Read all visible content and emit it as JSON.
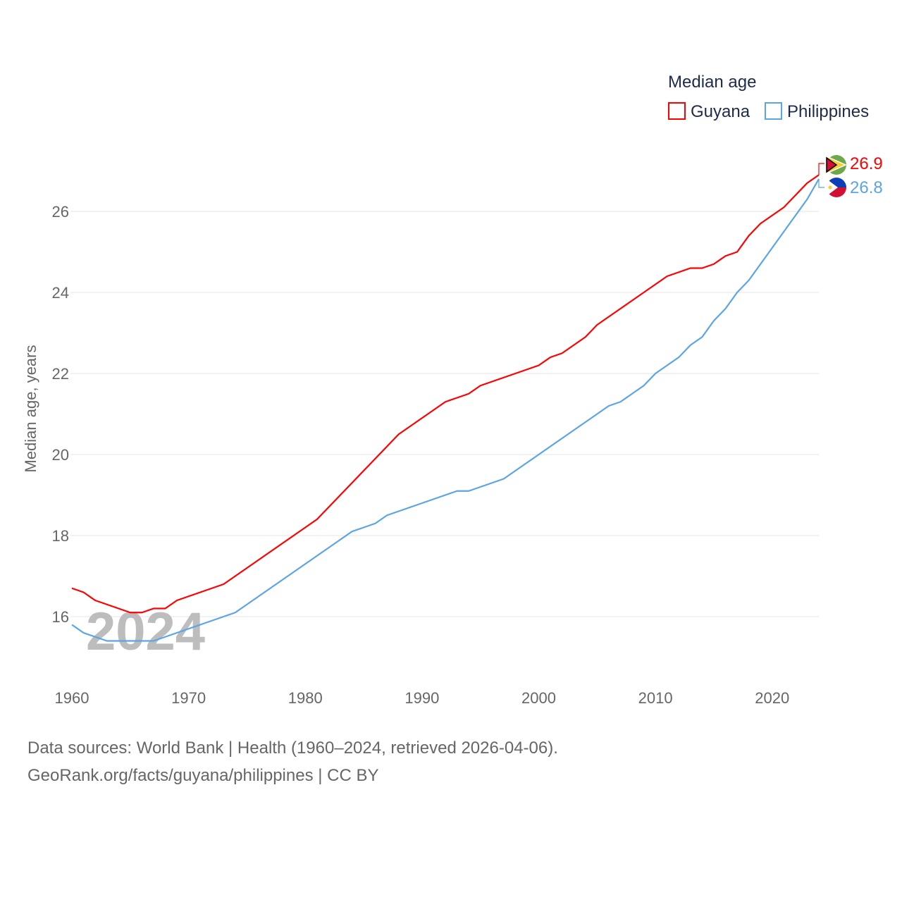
{
  "chart_data": {
    "type": "line",
    "title": "Median age",
    "xlabel": "",
    "ylabel": "Median age, years",
    "xlim": [
      1960,
      2024
    ],
    "ylim": [
      15,
      27
    ],
    "yticks": [
      16,
      18,
      20,
      22,
      24,
      26
    ],
    "xticks": [
      1960,
      1970,
      1980,
      1990,
      2000,
      2010,
      2020
    ],
    "grid": true,
    "legend_placement": "top-right",
    "watermark_year": "2024",
    "x": [
      1960,
      1961,
      1962,
      1963,
      1964,
      1965,
      1966,
      1967,
      1968,
      1969,
      1970,
      1971,
      1972,
      1973,
      1974,
      1975,
      1976,
      1977,
      1978,
      1979,
      1980,
      1981,
      1982,
      1983,
      1984,
      1985,
      1986,
      1987,
      1988,
      1989,
      1990,
      1991,
      1992,
      1993,
      1994,
      1995,
      1996,
      1997,
      1998,
      1999,
      2000,
      2001,
      2002,
      2003,
      2004,
      2005,
      2006,
      2007,
      2008,
      2009,
      2010,
      2011,
      2012,
      2013,
      2014,
      2015,
      2016,
      2017,
      2018,
      2019,
      2020,
      2021,
      2022,
      2023,
      2024
    ],
    "series": [
      {
        "name": "Guyana",
        "color": "#ff0000",
        "end_label": "26.9",
        "values": [
          16.7,
          16.6,
          16.4,
          16.3,
          16.2,
          16.1,
          16.1,
          16.2,
          16.2,
          16.4,
          16.5,
          16.6,
          16.7,
          16.8,
          17.0,
          17.2,
          17.4,
          17.6,
          17.8,
          18.0,
          18.2,
          18.4,
          18.7,
          19.0,
          19.3,
          19.6,
          19.9,
          20.2,
          20.5,
          20.7,
          20.9,
          21.1,
          21.3,
          21.4,
          21.5,
          21.7,
          21.8,
          21.9,
          22.0,
          22.1,
          22.2,
          22.4,
          22.5,
          22.7,
          22.9,
          23.2,
          23.4,
          23.6,
          23.8,
          24.0,
          24.2,
          24.4,
          24.5,
          24.6,
          24.6,
          24.7,
          24.9,
          25.0,
          25.4,
          25.7,
          25.9,
          26.1,
          26.4,
          26.7,
          26.9
        ]
      },
      {
        "name": "Philippines",
        "color": "#5ba4e8",
        "end_label": "26.8",
        "values": [
          15.8,
          15.6,
          15.5,
          15.4,
          15.4,
          15.4,
          15.4,
          15.4,
          15.5,
          15.6,
          15.7,
          15.8,
          15.9,
          16.0,
          16.1,
          16.3,
          16.5,
          16.7,
          16.9,
          17.1,
          17.3,
          17.5,
          17.7,
          17.9,
          18.1,
          18.2,
          18.3,
          18.5,
          18.6,
          18.7,
          18.8,
          18.9,
          19.0,
          19.1,
          19.1,
          19.2,
          19.3,
          19.4,
          19.6,
          19.8,
          20.0,
          20.2,
          20.4,
          20.6,
          20.8,
          21.0,
          21.2,
          21.3,
          21.5,
          21.7,
          22.0,
          22.2,
          22.4,
          22.7,
          22.9,
          23.3,
          23.6,
          24.0,
          24.3,
          24.7,
          25.1,
          25.5,
          25.9,
          26.3,
          26.8
        ]
      }
    ]
  },
  "footer": {
    "line1": "Data sources: World Bank | Health (1960–2024, retrieved 2026-04-06).",
    "line2": "GeoRank.org/facts/guyana/philippines | CC BY"
  }
}
